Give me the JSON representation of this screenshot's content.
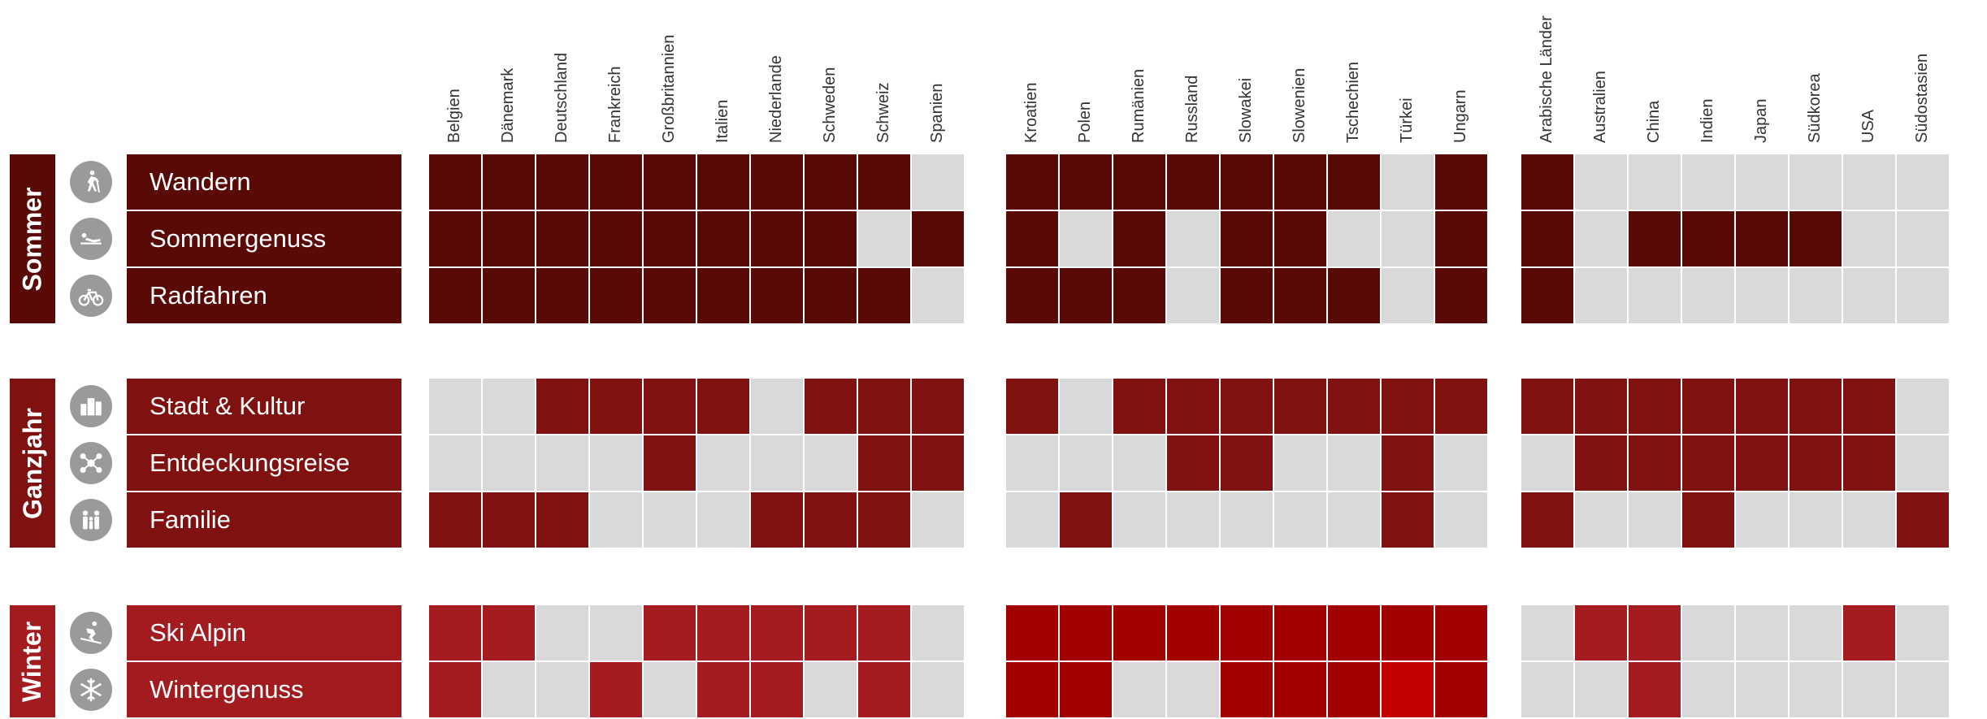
{
  "colors": {
    "sommer": "#5a0a06",
    "ganzjahr": "#7f1210",
    "winter_header": "#a11b1f",
    "winter_cell": "#a61b20",
    "winter_cell_dark": "#a30000",
    "winter_cell_bright": "#c40000",
    "off": "#d9d9d9",
    "icon": "#9a9a9a"
  },
  "chart_data": {
    "type": "heatmap",
    "country_groups": [
      [
        "Belgien",
        "Dänemark",
        "Deutschland",
        "Frankreich",
        "Großbritannien",
        "Italien",
        "Niederlande",
        "Schweden",
        "Schweiz",
        "Spanien"
      ],
      [
        "Kroatien",
        "Polen",
        "Rumänien",
        "Russland",
        "Slowakei",
        "Slowenien",
        "Tschechien",
        "Türkei",
        "Ungarn"
      ],
      [
        "Arabische Länder",
        "Australien",
        "China",
        "Indien",
        "Japan",
        "Südkorea",
        "USA",
        "Südostasien"
      ]
    ],
    "seasons": [
      {
        "name": "Sommer",
        "rows": [
          {
            "activity": "Wandern",
            "icon": "hiker-icon",
            "values": [
              1,
              1,
              1,
              1,
              1,
              1,
              1,
              1,
              1,
              0,
              1,
              1,
              1,
              1,
              1,
              1,
              1,
              0,
              1,
              1,
              0,
              0,
              0,
              0,
              0,
              0,
              0
            ]
          },
          {
            "activity": "Sommergenuss",
            "icon": "sunbather-icon",
            "values": [
              1,
              1,
              1,
              1,
              1,
              1,
              1,
              1,
              0,
              1,
              1,
              0,
              1,
              0,
              1,
              1,
              0,
              0,
              1,
              1,
              0,
              1,
              1,
              1,
              1,
              0,
              0
            ]
          },
          {
            "activity": "Radfahren",
            "icon": "bicycle-icon",
            "values": [
              1,
              1,
              1,
              1,
              1,
              1,
              1,
              1,
              1,
              0,
              1,
              1,
              1,
              0,
              1,
              1,
              1,
              0,
              1,
              1,
              0,
              0,
              0,
              0,
              0,
              0,
              0
            ]
          }
        ]
      },
      {
        "name": "Ganzjahr",
        "rows": [
          {
            "activity": "Stadt & Kultur",
            "icon": "city-icon",
            "values": [
              0,
              0,
              1,
              1,
              1,
              1,
              0,
              1,
              1,
              1,
              1,
              0,
              1,
              1,
              1,
              1,
              1,
              1,
              1,
              1,
              1,
              1,
              1,
              1,
              1,
              1,
              0
            ]
          },
          {
            "activity": "Entdeckungsreise",
            "icon": "network-icon",
            "values": [
              0,
              0,
              0,
              0,
              1,
              0,
              0,
              0,
              1,
              1,
              0,
              0,
              0,
              1,
              1,
              0,
              0,
              1,
              0,
              0,
              1,
              1,
              1,
              1,
              1,
              1,
              0
            ]
          },
          {
            "activity": "Familie",
            "icon": "family-icon",
            "values": [
              1,
              1,
              1,
              0,
              0,
              0,
              1,
              1,
              1,
              0,
              0,
              1,
              0,
              0,
              0,
              0,
              0,
              1,
              0,
              1,
              0,
              0,
              1,
              0,
              0,
              0,
              1
            ]
          }
        ]
      },
      {
        "name": "Winter",
        "rows": [
          {
            "activity": "Ski Alpin",
            "icon": "skier-icon",
            "values": [
              1,
              1,
              0,
              0,
              1,
              1,
              1,
              1,
              1,
              0,
              1,
              1,
              1,
              1,
              1,
              1,
              1,
              1,
              1,
              0,
              1,
              1,
              0,
              0,
              0,
              1,
              0
            ]
          },
          {
            "activity": "Wintergenuss",
            "icon": "snowflake-icon",
            "values": [
              1,
              0,
              0,
              1,
              0,
              1,
              1,
              0,
              1,
              0,
              1,
              1,
              0,
              0,
              1,
              1,
              1,
              2,
              1,
              0,
              0,
              1,
              0,
              0,
              0,
              0,
              0
            ]
          }
        ]
      }
    ]
  }
}
